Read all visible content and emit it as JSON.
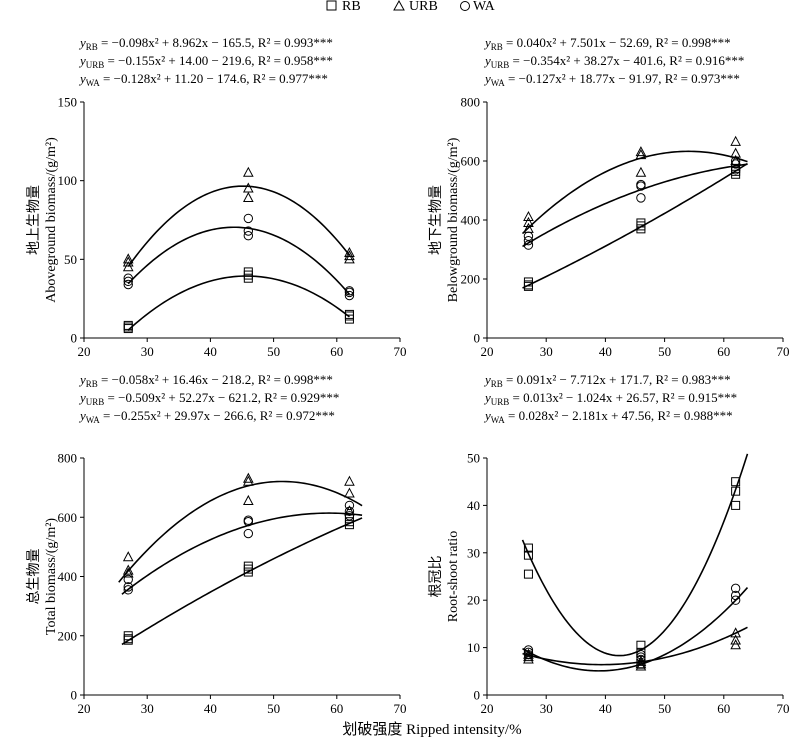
{
  "legend": [
    {
      "symbol": "square",
      "label": "RB"
    },
    {
      "symbol": "triangle",
      "label": "URB"
    },
    {
      "symbol": "circle",
      "label": "WA"
    }
  ],
  "xlabel": "划破强度 Ripped intensity/%",
  "chart_data": [
    {
      "id": "aboveground",
      "type": "scatter",
      "ylabel": [
        "地上生物量",
        "Aboveground biomass/(g/m²)"
      ],
      "xlim": [
        20,
        70
      ],
      "ylim": [
        0,
        150
      ],
      "xticks": [
        20,
        30,
        40,
        50,
        60,
        70
      ],
      "yticks": [
        0,
        50,
        100,
        150
      ],
      "equations": [
        {
          "y": "y",
          "sub": "RB",
          "body": " = −0.098x² + 8.962x − 165.5, ",
          "r2": "R² = 0.993***"
        },
        {
          "y": "y",
          "sub": "URB",
          "body": " = −0.155x² + 14.00 − 219.6, ",
          "r2": "R² = 0.958***"
        },
        {
          "y": "y",
          "sub": "WA",
          "body": " = −0.128x² + 11.20 − 174.6, ",
          "r2": "R² = 0.977***"
        }
      ],
      "fits": [
        {
          "name": "RB",
          "a": -0.098,
          "b": 8.962,
          "c": -165.5,
          "x_range": [
            27,
            62
          ]
        },
        {
          "name": "URB",
          "a": -0.155,
          "b": 14.0,
          "c": -219.6,
          "x_range": [
            27,
            62
          ]
        },
        {
          "name": "WA",
          "a": -0.128,
          "b": 11.2,
          "c": -174.6,
          "x_range": [
            27,
            62
          ]
        }
      ],
      "series": [
        {
          "name": "RB",
          "symbol": "square",
          "points": [
            [
              27,
              6
            ],
            [
              27,
              7
            ],
            [
              27,
              8
            ],
            [
              46,
              38
            ],
            [
              46,
              40
            ],
            [
              46,
              42
            ],
            [
              62,
              12
            ],
            [
              62,
              14
            ],
            [
              62,
              15
            ]
          ]
        },
        {
          "name": "URB",
          "symbol": "triangle",
          "points": [
            [
              27,
              45
            ],
            [
              27,
              48
            ],
            [
              27,
              50
            ],
            [
              46,
              89
            ],
            [
              46,
              95
            ],
            [
              46,
              105
            ],
            [
              62,
              50
            ],
            [
              62,
              52
            ],
            [
              62,
              54
            ]
          ]
        },
        {
          "name": "WA",
          "symbol": "circle",
          "points": [
            [
              27,
              34
            ],
            [
              27,
              36
            ],
            [
              27,
              38
            ],
            [
              46,
              65
            ],
            [
              46,
              68
            ],
            [
              46,
              76
            ],
            [
              62,
              27
            ],
            [
              62,
              29
            ],
            [
              62,
              30
            ]
          ]
        }
      ]
    },
    {
      "id": "belowground",
      "type": "scatter",
      "ylabel": [
        "地下生物量",
        "Belowground biomass/(g/m²)"
      ],
      "xlim": [
        20,
        70
      ],
      "ylim": [
        0,
        800
      ],
      "xticks": [
        20,
        30,
        40,
        50,
        60,
        70
      ],
      "yticks": [
        0,
        200,
        400,
        600,
        800
      ],
      "equations": [
        {
          "y": "y",
          "sub": "RB",
          "body": " = 0.040x² + 7.501x − 52.69, ",
          "r2": "R² = 0.998***"
        },
        {
          "y": "y",
          "sub": "URB",
          "body": " = −0.354x² + 38.27x − 401.6, ",
          "r2": "R² = 0.916***"
        },
        {
          "y": "y",
          "sub": "WA",
          "body": " = −0.127x² + 18.77x − 91.97, ",
          "r2": "R² = 0.973***"
        }
      ],
      "fits": [
        {
          "name": "RB",
          "a": 0.04,
          "b": 7.501,
          "c": -52.69,
          "x_range": [
            26,
            64
          ]
        },
        {
          "name": "URB",
          "a": -0.354,
          "b": 38.27,
          "c": -401.6,
          "x_range": [
            26,
            64
          ]
        },
        {
          "name": "WA",
          "a": -0.127,
          "b": 18.77,
          "c": -91.97,
          "x_range": [
            26,
            64
          ]
        }
      ],
      "series": [
        {
          "name": "RB",
          "symbol": "square",
          "points": [
            [
              27,
              175
            ],
            [
              27,
              180
            ],
            [
              27,
              190
            ],
            [
              46,
              370
            ],
            [
              46,
              380
            ],
            [
              46,
              390
            ],
            [
              62,
              555
            ],
            [
              62,
              565
            ],
            [
              62,
              575
            ]
          ]
        },
        {
          "name": "URB",
          "symbol": "triangle",
          "points": [
            [
              27,
              370
            ],
            [
              27,
              390
            ],
            [
              27,
              410
            ],
            [
              46,
              560
            ],
            [
              46,
              620
            ],
            [
              46,
              630
            ],
            [
              62,
              600
            ],
            [
              62,
              625
            ],
            [
              62,
              665
            ]
          ]
        },
        {
          "name": "WA",
          "symbol": "circle",
          "points": [
            [
              27,
              315
            ],
            [
              27,
              330
            ],
            [
              27,
              345
            ],
            [
              46,
              475
            ],
            [
              46,
              515
            ],
            [
              46,
              520
            ],
            [
              62,
              570
            ],
            [
              62,
              590
            ],
            [
              62,
              600
            ]
          ]
        }
      ]
    },
    {
      "id": "total",
      "type": "scatter",
      "ylabel": [
        "总生物量",
        "Total biomass/(g/m²)"
      ],
      "xlim": [
        20,
        70
      ],
      "ylim": [
        0,
        800
      ],
      "xticks": [
        20,
        30,
        40,
        50,
        60,
        70
      ],
      "yticks": [
        0,
        200,
        400,
        600,
        800
      ],
      "equations": [
        {
          "y": "y",
          "sub": "RB",
          "body": " = −0.058x² + 16.46x − 218.2, ",
          "r2": "R² = 0.998***"
        },
        {
          "y": "y",
          "sub": "URB",
          "body": " = −0.509x² + 52.27x − 621.2, ",
          "r2": "R² = 0.929***"
        },
        {
          "y": "y",
          "sub": "WA",
          "body": " = −0.255x² + 29.97x − 266.6, ",
          "r2": "R² = 0.972***"
        }
      ],
      "fits": [
        {
          "name": "RB",
          "a": -0.058,
          "b": 16.46,
          "c": -218.2,
          "x_range": [
            26,
            64
          ]
        },
        {
          "name": "URB",
          "a": -0.509,
          "b": 52.27,
          "c": -621.2,
          "x_range": [
            25.5,
            64
          ]
        },
        {
          "name": "WA",
          "a": -0.255,
          "b": 29.97,
          "c": -266.6,
          "x_range": [
            26,
            64
          ]
        }
      ],
      "series": [
        {
          "name": "RB",
          "symbol": "square",
          "points": [
            [
              27,
              185
            ],
            [
              27,
              190
            ],
            [
              27,
              200
            ],
            [
              46,
              415
            ],
            [
              46,
              425
            ],
            [
              46,
              435
            ],
            [
              62,
              575
            ],
            [
              62,
              585
            ],
            [
              62,
              595
            ]
          ]
        },
        {
          "name": "URB",
          "symbol": "triangle",
          "points": [
            [
              27,
              410
            ],
            [
              27,
              420
            ],
            [
              27,
              465
            ],
            [
              46,
              655
            ],
            [
              46,
              720
            ],
            [
              46,
              730
            ],
            [
              62,
              620
            ],
            [
              62,
              680
            ],
            [
              62,
              720
            ]
          ]
        },
        {
          "name": "WA",
          "symbol": "circle",
          "points": [
            [
              27,
              355
            ],
            [
              27,
              365
            ],
            [
              27,
              390
            ],
            [
              46,
              545
            ],
            [
              46,
              585
            ],
            [
              46,
              590
            ],
            [
              62,
              605
            ],
            [
              62,
              620
            ],
            [
              62,
              640
            ]
          ]
        }
      ]
    },
    {
      "id": "rootshoot",
      "type": "scatter",
      "ylabel": [
        "根冠比",
        "Root-shoot ratio"
      ],
      "xlim": [
        20,
        70
      ],
      "ylim": [
        0,
        50
      ],
      "xticks": [
        20,
        30,
        40,
        50,
        60,
        70
      ],
      "yticks": [
        0,
        10,
        20,
        30,
        40,
        50
      ],
      "equations": [
        {
          "y": "y",
          "sub": "RB",
          "body": " = 0.091x² − 7.712x + 171.7, ",
          "r2": "R² = 0.983***"
        },
        {
          "y": "y",
          "sub": "URB",
          "body": " = 0.013x² − 1.024x + 26.57, ",
          "r2": "R² = 0.915***"
        },
        {
          "y": "y",
          "sub": "WA",
          "body": " = 0.028x² − 2.181x + 47.56, ",
          "r2": "R² = 0.988***"
        }
      ],
      "fits": [
        {
          "name": "RB",
          "a": 0.091,
          "b": -7.712,
          "c": 171.7,
          "x_range": [
            26,
            64
          ]
        },
        {
          "name": "URB",
          "a": 0.013,
          "b": -1.024,
          "c": 26.57,
          "x_range": [
            26,
            64
          ]
        },
        {
          "name": "WA",
          "a": 0.028,
          "b": -2.181,
          "c": 47.56,
          "x_range": [
            26,
            64
          ]
        }
      ],
      "series": [
        {
          "name": "RB",
          "symbol": "square",
          "points": [
            [
              27,
              25.5
            ],
            [
              27,
              29.5
            ],
            [
              27,
              31
            ],
            [
              46,
              6.5
            ],
            [
              46,
              9
            ],
            [
              46,
              10.5
            ],
            [
              62,
              40
            ],
            [
              62,
              43
            ],
            [
              62,
              45
            ]
          ]
        },
        {
          "name": "URB",
          "symbol": "triangle",
          "points": [
            [
              27,
              7.5
            ],
            [
              27,
              8
            ],
            [
              27,
              8.5
            ],
            [
              46,
              6
            ],
            [
              46,
              6.5
            ],
            [
              46,
              7
            ],
            [
              62,
              10.5
            ],
            [
              62,
              11.5
            ],
            [
              62,
              13
            ]
          ]
        },
        {
          "name": "WA",
          "symbol": "circle",
          "points": [
            [
              27,
              8.5
            ],
            [
              27,
              9
            ],
            [
              27,
              9.5
            ],
            [
              46,
              7.5
            ],
            [
              46,
              8
            ],
            [
              46,
              8.5
            ],
            [
              62,
              20
            ],
            [
              62,
              21
            ],
            [
              62,
              22.5
            ]
          ]
        }
      ]
    }
  ]
}
